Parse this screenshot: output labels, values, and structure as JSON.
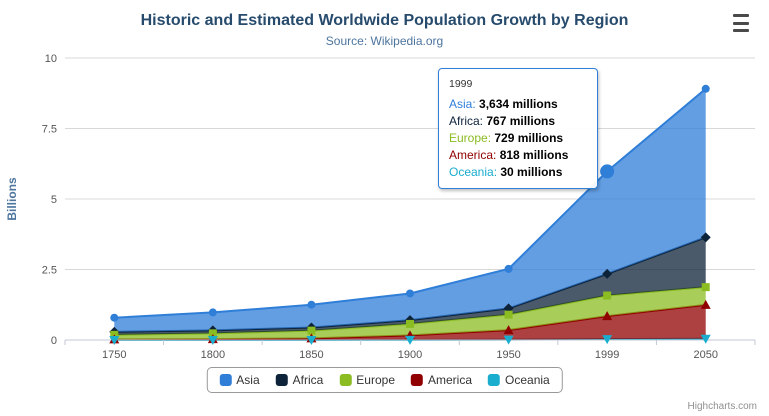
{
  "header": {
    "title": "Historic and Estimated Worldwide Population Growth by Region",
    "subtitle": "Source: Wikipedia.org"
  },
  "credits": {
    "label": "Highcharts.com"
  },
  "tooltip": {
    "header": "1999",
    "border_color": "#2f7ed8",
    "rows": [
      {
        "name": "Asia",
        "value": "3,634 millions"
      },
      {
        "name": "Africa",
        "value": "767 millions"
      },
      {
        "name": "Europe",
        "value": "729 millions"
      },
      {
        "name": "America",
        "value": "818 millions"
      },
      {
        "name": "Oceania",
        "value": "30 millions"
      }
    ]
  },
  "chart_data": {
    "type": "area",
    "stacking": "normal",
    "title": "Historic and Estimated Worldwide Population Growth by Region",
    "subtitle": "Source: Wikipedia.org",
    "categories": [
      "1750",
      "1800",
      "1850",
      "1900",
      "1950",
      "1999",
      "2050"
    ],
    "units": "millions",
    "series": [
      {
        "name": "Asia",
        "color": "#2f7ed8",
        "marker": "circle",
        "values": [
          502,
          635,
          809,
          947,
          1402,
          3634,
          5268
        ]
      },
      {
        "name": "Africa",
        "color": "#0d233a",
        "marker": "diamond",
        "values": [
          106,
          107,
          111,
          133,
          221,
          767,
          1766
        ]
      },
      {
        "name": "Europe",
        "color": "#8bbc21",
        "marker": "square",
        "values": [
          163,
          203,
          276,
          408,
          547,
          729,
          628
        ]
      },
      {
        "name": "America",
        "color": "#910000",
        "marker": "triangle",
        "values": [
          18,
          31,
          54,
          156,
          339,
          818,
          1201
        ]
      },
      {
        "name": "Oceania",
        "color": "#1aadce",
        "marker": "triangle-down",
        "values": [
          2,
          2,
          2,
          6,
          13,
          30,
          46
        ]
      }
    ],
    "ylabel": "Billions",
    "ylim": [
      0,
      10
    ],
    "y_ticks": [
      "0",
      "2.5",
      "5",
      "7.5",
      "10"
    ],
    "grid": true,
    "legend_position": "bottom",
    "hovered_series": "Asia",
    "hovered_category": "1999"
  }
}
